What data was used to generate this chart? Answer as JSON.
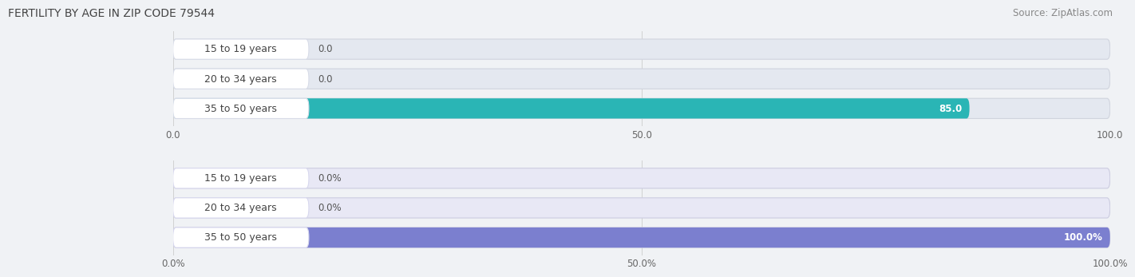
{
  "title": "FERTILITY BY AGE IN ZIP CODE 79544",
  "source": "Source: ZipAtlas.com",
  "background_color": "#f0f2f5",
  "top_chart": {
    "categories": [
      "15 to 19 years",
      "20 to 34 years",
      "35 to 50 years"
    ],
    "values": [
      0.0,
      0.0,
      85.0
    ],
    "xlim": [
      0,
      100
    ],
    "xticks": [
      0.0,
      50.0,
      100.0
    ],
    "xtick_labels": [
      "0.0",
      "50.0",
      "100.0"
    ],
    "bar_color": "#2ab5b5",
    "bar_small_color": "#5bcfcf",
    "label_outside_color": "#555555",
    "label_inside_color": "#ffffff",
    "bar_bg_color": "#e4e8f0",
    "bar_border_color": "#d0d4de",
    "badge_bg": "#ffffff",
    "badge_border": "#d8dce8"
  },
  "bottom_chart": {
    "categories": [
      "15 to 19 years",
      "20 to 34 years",
      "35 to 50 years"
    ],
    "values": [
      0.0,
      0.0,
      100.0
    ],
    "xlim": [
      0,
      100
    ],
    "xticks": [
      0.0,
      50.0,
      100.0
    ],
    "xtick_labels": [
      "0.0%",
      "50.0%",
      "100.0%"
    ],
    "bar_color": "#7b7fcf",
    "bar_small_color": "#9999dd",
    "label_outside_color": "#555555",
    "label_inside_color": "#ffffff",
    "bar_bg_color": "#e8e8f5",
    "bar_border_color": "#cccce0",
    "badge_bg": "#ffffff",
    "badge_border": "#d8d8ee"
  },
  "title_fontsize": 10,
  "source_fontsize": 8.5,
  "label_fontsize": 8.5,
  "tick_fontsize": 8.5,
  "category_fontsize": 9
}
